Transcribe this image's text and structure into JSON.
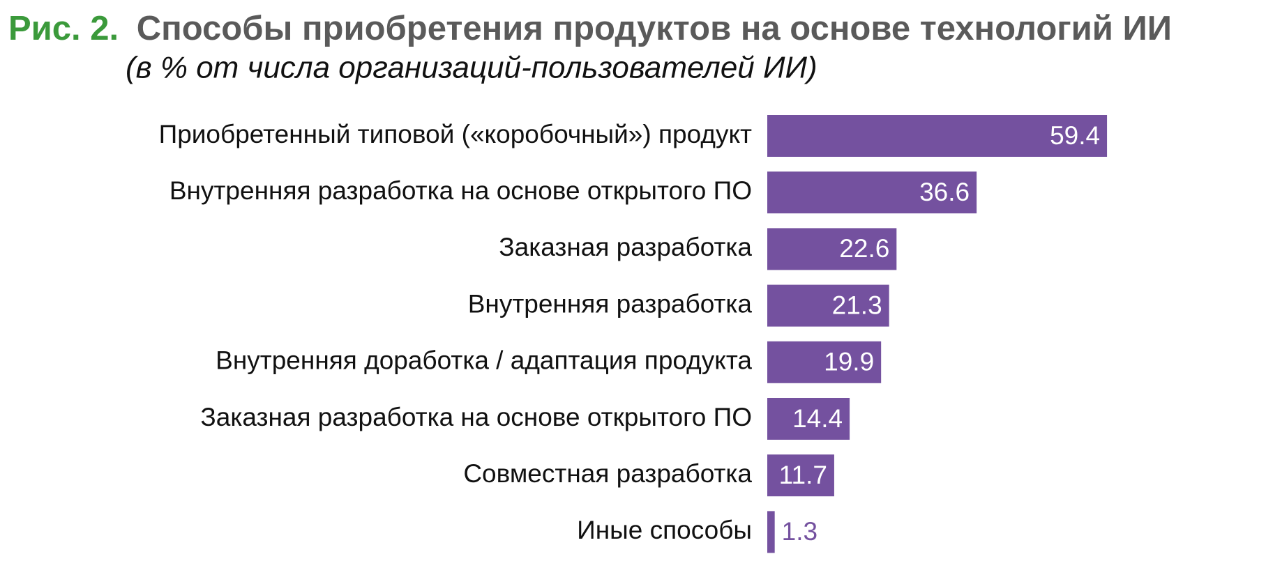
{
  "chart_data": {
    "type": "bar",
    "orientation": "horizontal",
    "figure_label": "Рис. 2.",
    "title": "Способы приобретения продуктов на основе технологий ИИ",
    "subtitle": "(в % от числа организаций-пользователей ИИ)",
    "categories": [
      "Приобретенный типовой («коробочный») продукт",
      "Внутренняя разработка на основе открытого ПО",
      "Заказная разработка",
      "Внутренняя разработка",
      "Внутренняя доработка / адаптация продукта",
      "Заказная разработка на основе открытого ПО",
      "Совместная разработка",
      "Иные способы"
    ],
    "values": [
      59.4,
      36.6,
      22.6,
      21.3,
      19.9,
      14.4,
      11.7,
      1.3
    ],
    "color": "#74519f"
  }
}
